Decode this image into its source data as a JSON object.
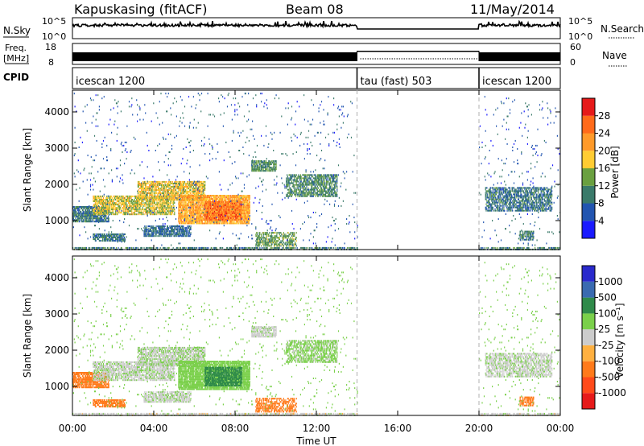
{
  "header": {
    "station": "Kapuskasing (fitACF)",
    "beam": "Beam 08",
    "date": "11/May/2014"
  },
  "noise_panel": {
    "left_label": "N.Sky",
    "right_label": "N.Search",
    "ticks_left": [
      "10^5",
      "10^0"
    ],
    "ticks_right": [
      "10^5",
      "10^0"
    ]
  },
  "freq_panel": {
    "left_label": "Freq.",
    "left_unit": "[MHz]",
    "right_label": "Nave",
    "ticks_left": [
      "18",
      "8"
    ],
    "ticks_right": [
      "60",
      "0"
    ]
  },
  "cpid_panel": {
    "label": "CPID",
    "segments": [
      {
        "name": "icescan 1200",
        "start_h": 0,
        "end_h": 14
      },
      {
        "name": "tau (fast) 503",
        "start_h": 14,
        "end_h": 20
      },
      {
        "name": "icescan 1200",
        "start_h": 20,
        "end_h": 24
      }
    ]
  },
  "time_axis": {
    "label": "Time UT",
    "ticks": [
      "00:00",
      "04:00",
      "08:00",
      "12:00",
      "16:00",
      "20:00",
      "00:00"
    ]
  },
  "range_axis": {
    "label": "Slant Range [km]",
    "ticks": [
      "1000",
      "2000",
      "3000",
      "4000"
    ]
  },
  "power_scale": {
    "label": "Power [dB]",
    "ticks": [
      "4",
      "8",
      "12",
      "16",
      "20",
      "24",
      "28"
    ],
    "colors": [
      "#1a1aff",
      "#2255b0",
      "#3a7a6a",
      "#6aa040",
      "#ffcc33",
      "#ff9a2a",
      "#ff6a1a",
      "#e61a1a"
    ]
  },
  "velocity_scale": {
    "label": "Velocity [m s⁻¹]",
    "ticks": [
      "1000",
      "500",
      "100",
      "25",
      "-25",
      "-100",
      "-500",
      "-1000"
    ],
    "colors": [
      "#2a2acc",
      "#3a6ab0",
      "#2f8a4a",
      "#7ad04a",
      "#cccccc",
      "#ffb040",
      "#ff7a1a",
      "#ff4a1a",
      "#e61a1a"
    ]
  },
  "chart_data": {
    "type": "heatmap",
    "x_unit": "hours UT",
    "xlim": [
      0,
      24
    ],
    "ylim": [
      200,
      4600
    ],
    "gate_width_km": 45,
    "regions": [
      {
        "t0": 0.0,
        "t1": 14.0,
        "r0": 180,
        "r1": 260,
        "power": 10,
        "velocity": 0,
        "density": 0.55
      },
      {
        "t0": 20.0,
        "t1": 24.0,
        "r0": 180,
        "r1": 260,
        "power": 10,
        "velocity": 0,
        "density": 0.55
      },
      {
        "t0": 0.0,
        "t1": 1.8,
        "r0": 950,
        "r1": 1400,
        "power": 9,
        "velocity": -280,
        "density": 0.8
      },
      {
        "t0": 1.0,
        "t1": 5.0,
        "r0": 1150,
        "r1": 1650,
        "power": 17,
        "velocity": 10,
        "density": 0.7
      },
      {
        "t0": 3.2,
        "t1": 6.5,
        "r0": 1550,
        "r1": 2050,
        "power": 18,
        "velocity": 15,
        "density": 0.75
      },
      {
        "t0": 5.2,
        "t1": 8.7,
        "r0": 900,
        "r1": 1700,
        "power": 21,
        "velocity": 70,
        "density": 0.85
      },
      {
        "t0": 6.5,
        "t1": 8.3,
        "r0": 1000,
        "r1": 1500,
        "power": 25,
        "velocity": 140,
        "density": 0.75
      },
      {
        "t0": 8.8,
        "t1": 10.0,
        "r0": 2350,
        "r1": 2650,
        "power": 12,
        "velocity": 5,
        "density": 0.7
      },
      {
        "t0": 10.5,
        "t1": 13.0,
        "r0": 1650,
        "r1": 2250,
        "power": 11,
        "velocity": 40,
        "density": 0.65
      },
      {
        "t0": 1.0,
        "t1": 2.6,
        "r0": 420,
        "r1": 620,
        "power": 9,
        "velocity": -260,
        "density": 0.7
      },
      {
        "t0": 3.5,
        "t1": 5.8,
        "r0": 550,
        "r1": 850,
        "power": 8,
        "velocity": 10,
        "density": 0.7
      },
      {
        "t0": 9.0,
        "t1": 11.0,
        "r0": 280,
        "r1": 650,
        "power": 13,
        "velocity": -200,
        "density": 0.55
      },
      {
        "t0": 20.3,
        "t1": 23.6,
        "r0": 1250,
        "r1": 1900,
        "power": 9,
        "velocity": 8,
        "density": 0.6
      },
      {
        "t0": 22.0,
        "t1": 22.7,
        "r0": 450,
        "r1": 700,
        "power": 10,
        "velocity": -250,
        "density": 0.6
      },
      {
        "t0": 0.0,
        "t1": 14.0,
        "r0": 300,
        "r1": 4500,
        "power": 7,
        "velocity": 60,
        "density": 0.02
      },
      {
        "t0": 20.0,
        "t1": 24.0,
        "r0": 300,
        "r1": 4500,
        "power": 7,
        "velocity": 60,
        "density": 0.02
      }
    ]
  }
}
